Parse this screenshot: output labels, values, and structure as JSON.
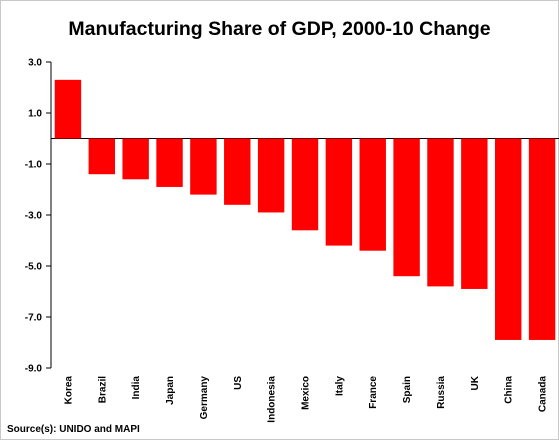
{
  "chart_data": {
    "type": "bar",
    "title": "Manufacturing Share of GDP, 2000-10 Change",
    "source": "Source(s):  UNIDO and MAPI",
    "categories": [
      "Korea",
      "Brazil",
      "India",
      "Japan",
      "Germany",
      "US",
      "Indonesia",
      "Mexico",
      "Italy",
      "France",
      "Spain",
      "Russia",
      "UK",
      "China",
      "Canada"
    ],
    "series": [
      {
        "values": [
          2.3,
          -1.4,
          -1.6,
          -1.9,
          -2.2,
          -2.6,
          -2.9,
          -3.6,
          -4.2,
          -4.4,
          -5.4,
          -5.8,
          -5.9,
          -7.9,
          -7.9
        ]
      }
    ],
    "yticks": [
      "3.0",
      "1.0",
      "-1.0",
      "-3.0",
      "-5.0",
      "-7.0",
      "-9.0"
    ],
    "ylim": [
      -9,
      3
    ],
    "bar_color": "#ff0000",
    "grid": false,
    "legend": "none"
  }
}
